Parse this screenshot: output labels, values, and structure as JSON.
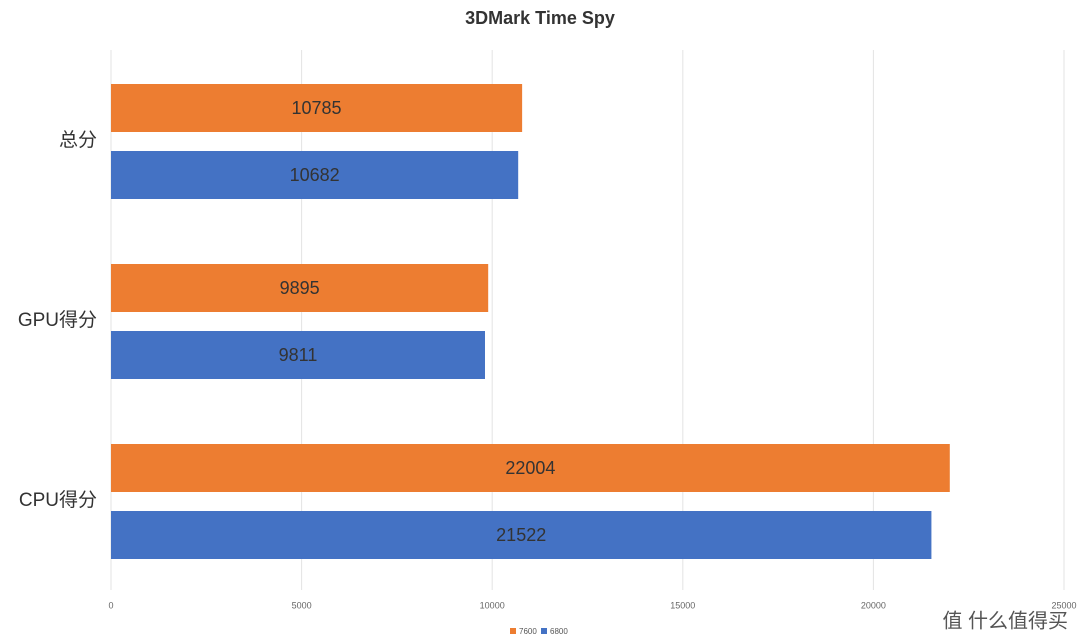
{
  "chart_data": {
    "type": "bar",
    "orientation": "horizontal",
    "title": "3DMark Time Spy",
    "categories": [
      "总分",
      "GPU得分",
      "CPU得分"
    ],
    "series": [
      {
        "name": "7600",
        "color": "#ed7d31",
        "values": [
          10785,
          9895,
          22004
        ]
      },
      {
        "name": "6800",
        "color": "#4472c4",
        "values": [
          10682,
          9811,
          21522
        ]
      }
    ],
    "xlim": [
      0,
      25000
    ],
    "xticks": [
      0,
      5000,
      10000,
      15000,
      20000,
      25000
    ],
    "grid": true,
    "legend": "bottom",
    "watermark": "值 什么值得买"
  }
}
